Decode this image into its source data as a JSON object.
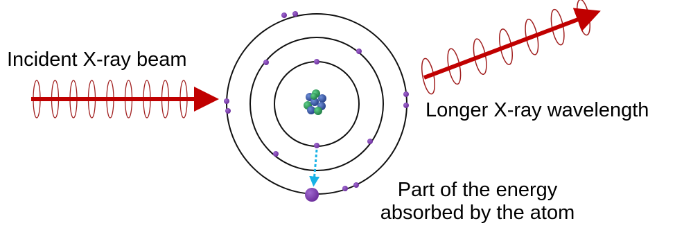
{
  "labels": {
    "incident": "Incident X-ray beam",
    "scattered": "Longer X-ray wavelength",
    "absorbed_line1": "Part of the energy",
    "absorbed_line2": "absorbed by the atom"
  },
  "colors": {
    "beam": "#c00000",
    "wave": "#a01e1e",
    "electron": "#7a3aa8",
    "orbit": "#111111",
    "transition_arrow": "#17b2e6",
    "nucleus_proton": "#2e8b57",
    "nucleus_neutron": "#2f4f9f"
  },
  "icons": {
    "nucleus": "nucleus-icon",
    "electron": "electron-dot-icon"
  }
}
